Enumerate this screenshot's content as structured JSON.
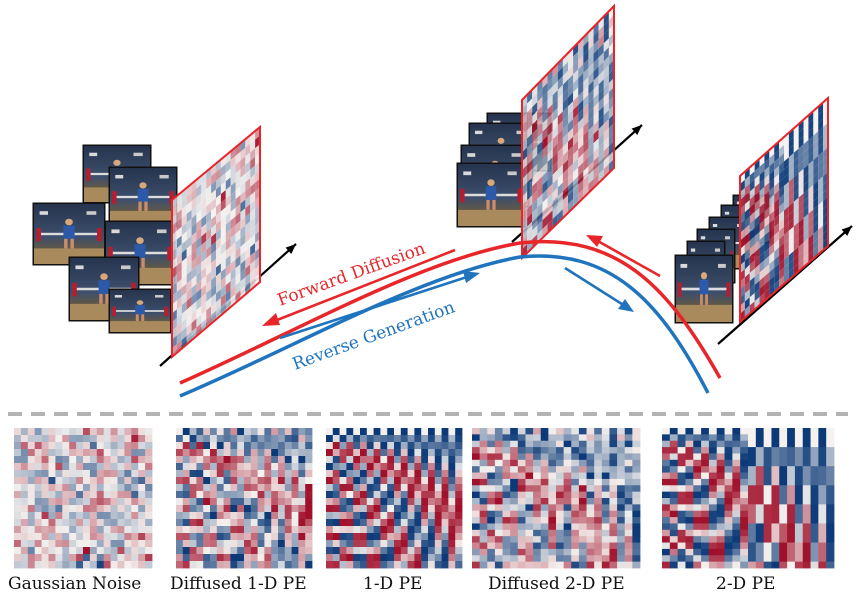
{
  "labels": {
    "forward": "Forward Diffusion",
    "reverse": "Reverse Generation"
  },
  "panels": [
    {
      "id": "gaussian-noise",
      "caption": "Gaussian Noise"
    },
    {
      "id": "diffused-1d-pe",
      "caption": "Diffused 1-D PE"
    },
    {
      "id": "pe-1d",
      "caption": "1-D PE"
    },
    {
      "id": "diffused-2d-pe",
      "caption": "Diffused 2-D PE"
    },
    {
      "id": "pe-2d",
      "caption": "2-D PE"
    }
  ],
  "colors": {
    "forward": "#e8262a",
    "reverse": "#1f74bd",
    "heat_red": "#a0102a",
    "heat_white": "#f4f1ee",
    "heat_blue": "#0c3a78",
    "divider": "#b3b3b3",
    "frame_border": "#e8262a",
    "axis": "#000000"
  }
}
